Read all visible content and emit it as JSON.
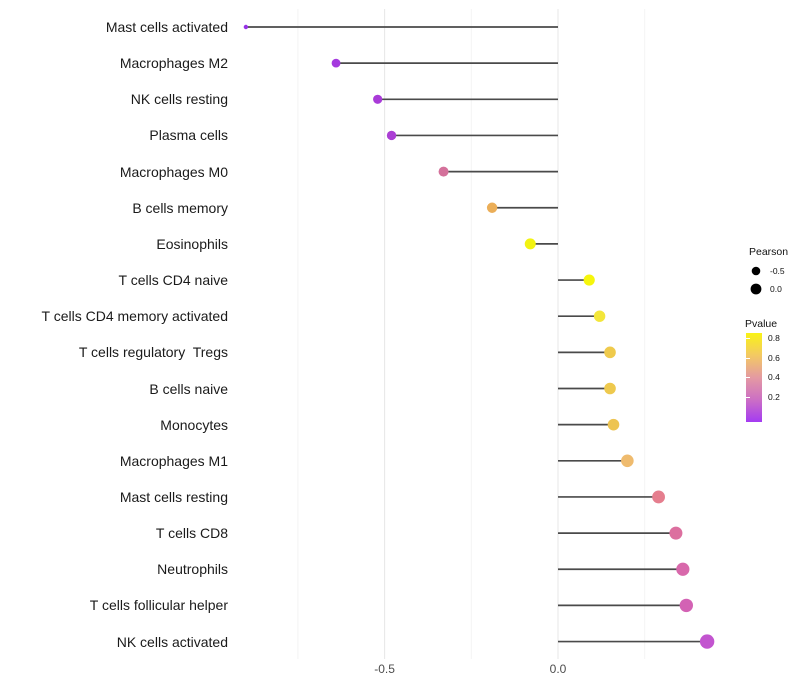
{
  "chart_data": {
    "type": "lollipop",
    "title": "",
    "xlabel": "",
    "ylabel": "",
    "x_axis": {
      "tick_labels": [
        "-0.5",
        "0.0"
      ],
      "tick_values": [
        -0.5,
        0.0
      ],
      "range": [
        -0.97,
        0.5
      ],
      "gridline_values": [
        -0.75,
        -0.5,
        -0.25,
        0.0,
        0.25
      ]
    },
    "categories": [
      "Mast cells activated",
      "Macrophages M2",
      "NK cells resting",
      "Plasma cells",
      "Macrophages M0",
      "B cells memory",
      "Eosinophils",
      "T cells CD4 naive",
      "T cells CD4 memory activated",
      "T cells regulatory  Tregs",
      "B cells naive",
      "Monocytes",
      "Macrophages M1",
      "Mast cells resting",
      "T cells CD8",
      "Neutrophils",
      "T cells follicular helper",
      "NK cells activated"
    ],
    "series": [
      {
        "name": "Pearson",
        "values": [
          -0.9,
          -0.64,
          -0.52,
          -0.48,
          -0.33,
          -0.19,
          -0.08,
          0.09,
          0.12,
          0.15,
          0.15,
          0.16,
          0.2,
          0.29,
          0.34,
          0.36,
          0.37,
          0.43
        ]
      },
      {
        "name": "Pvalue",
        "values": [
          0.02,
          0.06,
          0.08,
          0.09,
          0.35,
          0.58,
          0.84,
          0.85,
          0.78,
          0.7,
          0.7,
          0.68,
          0.62,
          0.46,
          0.4,
          0.36,
          0.32,
          0.2
        ]
      }
    ],
    "point_colors": [
      "#9632e6",
      "#a43ade",
      "#a93bd8",
      "#ab3fd4",
      "#d4719b",
      "#ebae58",
      "#f2f312",
      "#f6f60c",
      "#f3e63a",
      "#efca4c",
      "#eec94e",
      "#edc452",
      "#efbb6e",
      "#e57e8e",
      "#dc6f9f",
      "#d868ab",
      "#d362b4",
      "#c254cf"
    ],
    "point_radii": [
      2.2,
      4.4,
      4.6,
      4.7,
      5.0,
      5.2,
      5.5,
      5.6,
      5.7,
      5.8,
      5.8,
      5.8,
      6.3,
      6.4,
      6.5,
      6.6,
      6.7,
      7.2
    ],
    "legend": {
      "size": {
        "title": "Pearson",
        "entries": [
          {
            "label": "-0.5",
            "radius": 4.3
          },
          {
            "label": "0.0",
            "radius": 5.4
          }
        ],
        "dot_color": "#000000"
      },
      "color": {
        "title": "Pvalue",
        "tick_labels": [
          "0.8",
          "0.6",
          "0.4",
          "0.2"
        ],
        "tick_values": [
          0.8,
          0.6,
          0.4,
          0.2
        ],
        "gradient_top_to_bottom": [
          "#f9f316",
          "#f3c963",
          "#e49aa2",
          "#cc6fc4",
          "#a43bf2"
        ]
      }
    },
    "style_colors": {
      "stem": "#4a4a4a",
      "gridline_major": "#e7e7e7",
      "gridline_minor": "#f4f4f4",
      "axis_text": "#4d4d4d",
      "label_text": "#1a1a1a",
      "background": "#ffffff"
    }
  }
}
